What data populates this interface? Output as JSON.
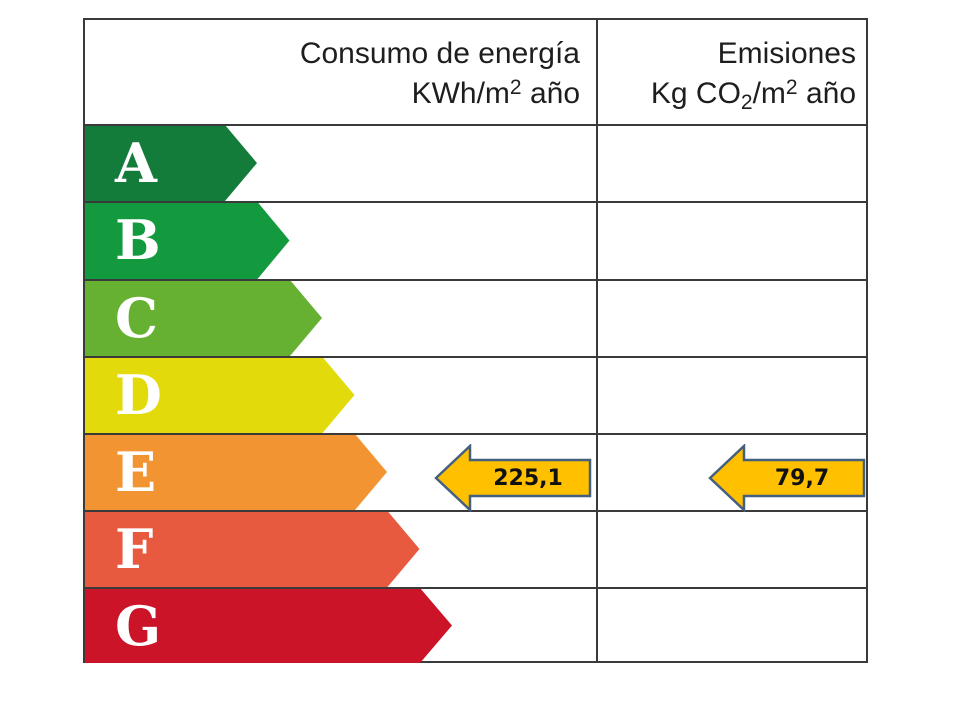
{
  "header": {
    "consumption_title": "Consumo de energía",
    "consumption_unit_prefix": "KWh/m",
    "consumption_unit_sup": "2",
    "consumption_unit_suffix": " año",
    "emissions_title": "Emisiones",
    "emissions_unit_prefix": "Kg CO",
    "emissions_unit_sub": "2",
    "emissions_unit_mid": "/m",
    "emissions_unit_sup": "2",
    "emissions_unit_suffix": " año"
  },
  "bands": [
    {
      "letter": "A",
      "color": "#137c3b"
    },
    {
      "letter": "B",
      "color": "#139a3f"
    },
    {
      "letter": "C",
      "color": "#66b132"
    },
    {
      "letter": "D",
      "color": "#e2da0a"
    },
    {
      "letter": "E",
      "color": "#f39433"
    },
    {
      "letter": "F",
      "color": "#e85a40"
    },
    {
      "letter": "G",
      "color": "#cc1428"
    }
  ],
  "rating": {
    "class": "E",
    "consumption_value": "225,1",
    "emissions_value": "79,7",
    "arrow_color": "#ffc000",
    "arrow_border": "#44607e"
  }
}
